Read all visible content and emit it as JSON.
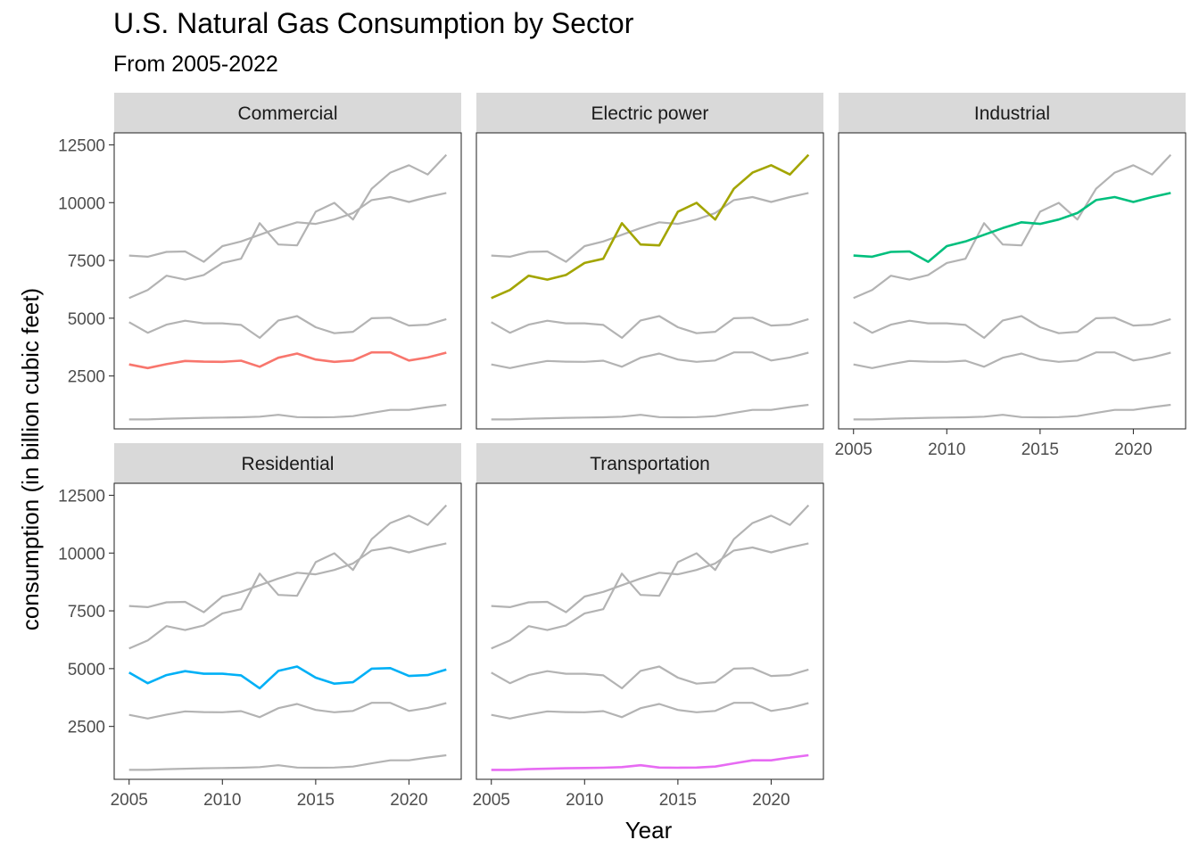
{
  "chart_data": {
    "type": "line",
    "title": "U.S. Natural Gas Consumption by Sector",
    "subtitle": "From 2005-2022",
    "xlabel": "Year",
    "ylabel": "consumption (in billion cubic feet)",
    "facet_layout": "3 columns, 2 rows; each panel highlights one sector in color with other sectors in gray",
    "grid": false,
    "legend": "none",
    "xlim": [
      2004.2,
      2022.8
    ],
    "ylim": [
      210,
      13020
    ],
    "x_ticks": [
      2005,
      2010,
      2015,
      2020
    ],
    "y_ticks": [
      2500,
      5000,
      7500,
      10000,
      12500
    ],
    "background_color": "#ffffff",
    "gray_line_color": "#b3b3b3",
    "strip_color": "#d9d9d9",
    "x": [
      2005,
      2006,
      2007,
      2008,
      2009,
      2010,
      2011,
      2012,
      2013,
      2014,
      2015,
      2016,
      2017,
      2018,
      2019,
      2020,
      2021,
      2022
    ],
    "series": [
      {
        "name": "Commercial",
        "color": "#f8766d",
        "values": [
          3000,
          2840,
          3010,
          3150,
          3120,
          3110,
          3160,
          2900,
          3290,
          3470,
          3210,
          3110,
          3170,
          3520,
          3520,
          3170,
          3300,
          3510
        ]
      },
      {
        "name": "Electric power",
        "color": "#a3a500",
        "values": [
          5870,
          6220,
          6840,
          6670,
          6870,
          7390,
          7570,
          9110,
          8190,
          8150,
          9610,
          9990,
          9270,
          10600,
          11300,
          11620,
          11220,
          12070
        ]
      },
      {
        "name": "Industrial",
        "color": "#00bf7d",
        "values": [
          7710,
          7660,
          7870,
          7890,
          7440,
          8120,
          8320,
          8610,
          8900,
          9150,
          9080,
          9270,
          9550,
          10110,
          10240,
          10030,
          10240,
          10420
        ]
      },
      {
        "name": "Residential",
        "color": "#00b0f6",
        "values": [
          4830,
          4370,
          4720,
          4890,
          4780,
          4780,
          4710,
          4150,
          4900,
          5090,
          4610,
          4350,
          4410,
          5000,
          5020,
          4680,
          4720,
          4960
        ]
      },
      {
        "name": "Transportation",
        "color": "#e76bf3",
        "values": [
          620,
          620,
          650,
          670,
          690,
          700,
          710,
          740,
          820,
          720,
          710,
          720,
          760,
          900,
          1030,
          1030,
          1150,
          1250
        ]
      }
    ]
  }
}
